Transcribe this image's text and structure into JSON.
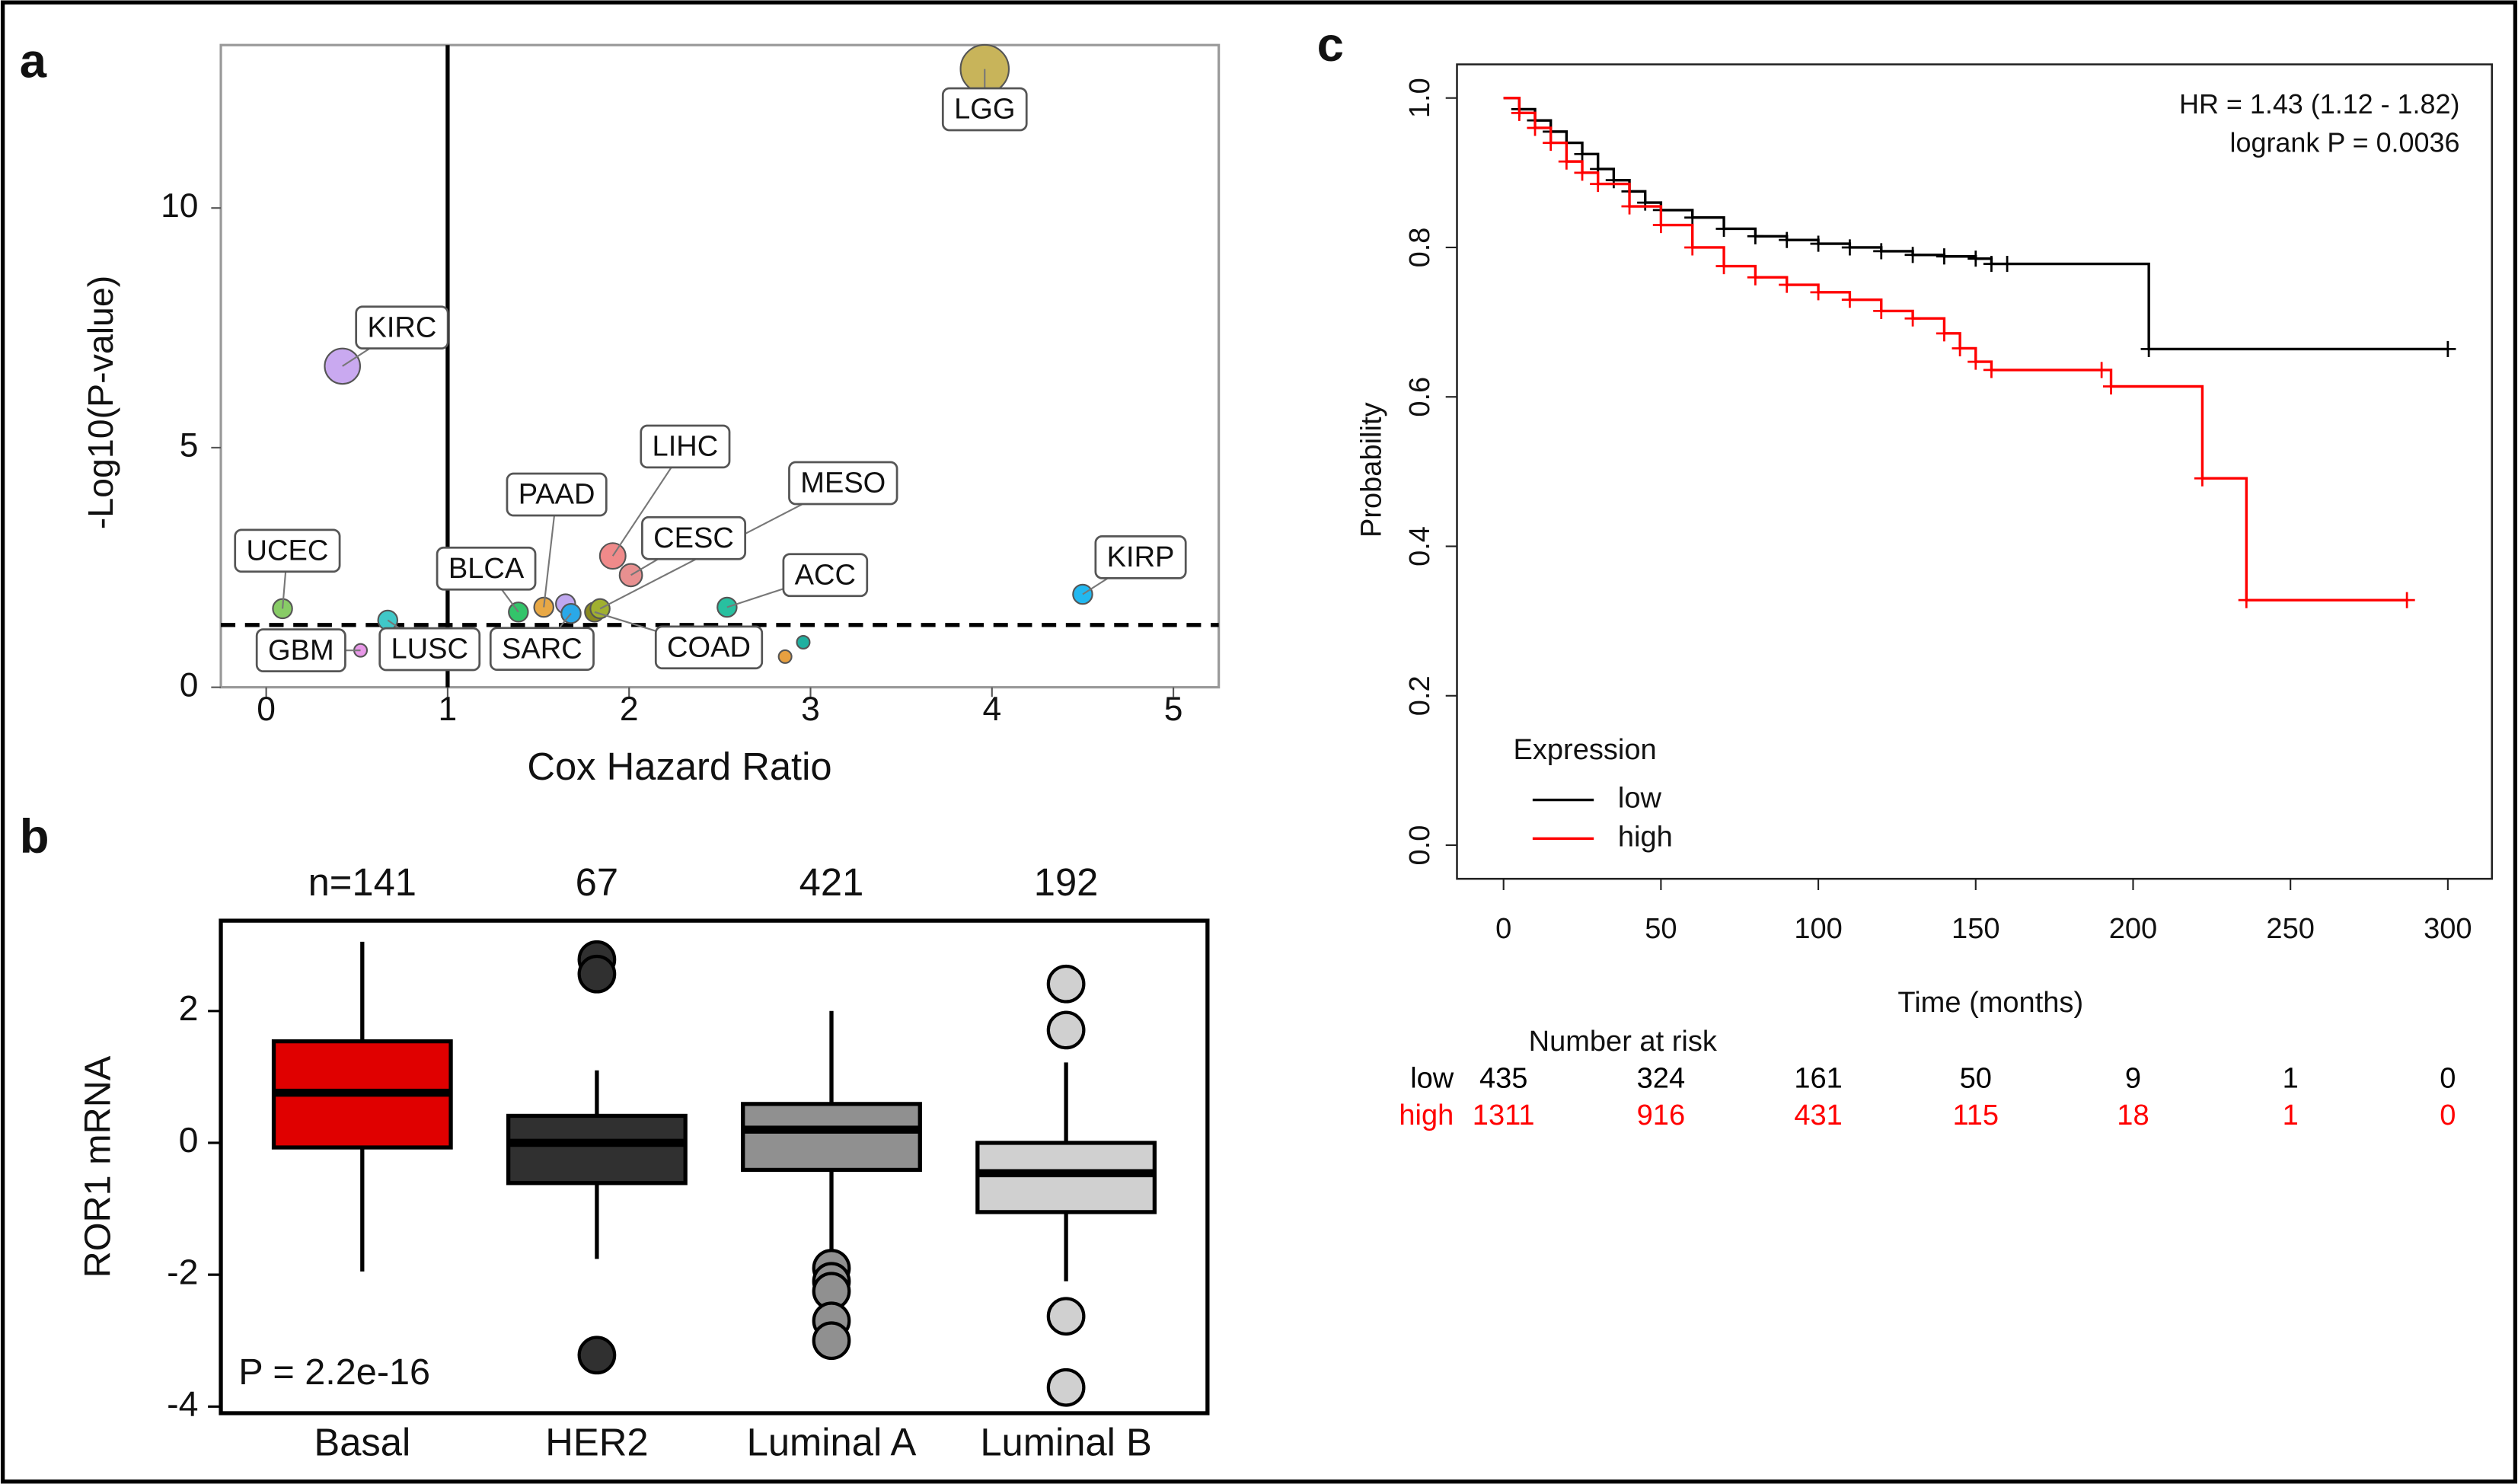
{
  "chart_data": [
    {
      "type": "scatter",
      "panel_label": "a",
      "xlabel": "Cox Hazard Ratio",
      "ylabel": "-Log10(P-value)",
      "xlim": [
        -0.25,
        5.25
      ],
      "ylim": [
        0,
        13.4
      ],
      "xticks": [
        0,
        1,
        2,
        3,
        4,
        5
      ],
      "yticks": [
        0,
        5,
        10
      ],
      "vline": 1,
      "hline": 1.3,
      "labels": [
        "LGG",
        "KIRC",
        "UCEC",
        "GBM",
        "LUSC",
        "BLCA",
        "PAAD",
        null,
        "SARC",
        "COAD",
        "MESO",
        "CESC",
        "LIHC",
        "ACC",
        "KIRP",
        null,
        null
      ],
      "x": [
        3.96,
        0.42,
        0.09,
        0.52,
        0.67,
        1.39,
        1.53,
        1.65,
        1.68,
        1.81,
        1.84,
        2.01,
        1.91,
        2.54,
        4.5,
        2.86,
        2.96
      ],
      "values": [
        12.9,
        6.7,
        1.64,
        0.77,
        1.4,
        1.57,
        1.67,
        1.74,
        1.54,
        1.57,
        1.64,
        2.34,
        2.74,
        1.67,
        1.94,
        0.64,
        0.94
      ],
      "sizes": [
        15,
        11,
        6,
        4,
        6,
        6,
        6,
        6,
        6,
        6,
        6,
        7,
        8,
        6,
        6,
        4,
        4
      ],
      "colors": [
        "#c8b45a",
        "#c9a9f0",
        "#88cc66",
        "#e898e8",
        "#40c8c8",
        "#33c46a",
        "#e8a845",
        "#c0a8f0",
        "#2aa8e8",
        "#8a8a20",
        "#a0b030",
        "#e89090",
        "#f08a8a",
        "#28c0a0",
        "#22b8f0",
        "#e8a040",
        "#20b0a0"
      ]
    },
    {
      "type": "box",
      "panel_label": "b",
      "ylabel": "ROR1 mRNA",
      "categories": [
        "Basal",
        "HER2",
        "Luminal A",
        "Luminal B"
      ],
      "counts": [
        "n=141",
        "67",
        "421",
        "192"
      ],
      "annotation": "P = 2.2e-16",
      "ylim": [
        -4.1,
        3.37
      ],
      "yticks": [
        -4,
        -2,
        0,
        2
      ],
      "whisker_low": [
        -1.95,
        -1.76,
        -1.7,
        -2.1
      ],
      "q1": [
        -0.07,
        -0.61,
        -0.41,
        -1.05
      ],
      "median": [
        0.76,
        0.0,
        0.2,
        -0.46
      ],
      "q3": [
        1.54,
        0.41,
        0.59,
        0.0
      ],
      "whisker_high": [
        3.05,
        1.1,
        2.0,
        1.22
      ],
      "outliers": [
        [],
        [
          2.78,
          2.56,
          -3.22
        ],
        [
          -1.9,
          -2.1,
          -2.25,
          -2.7,
          -3.0
        ],
        [
          2.41,
          1.71,
          -2.63,
          -3.71
        ]
      ],
      "colors": [
        "#e00000",
        "#303030",
        "#909090",
        "#d0d0d0"
      ]
    },
    {
      "type": "line",
      "panel_label": "c",
      "step": true,
      "xlabel": "Time (months)",
      "ylabel": "Probability",
      "xlim": [
        -14.8,
        314
      ],
      "ylim": [
        -0.045,
        1.045
      ],
      "xticks": [
        0,
        50,
        100,
        150,
        200,
        250,
        300
      ],
      "yticks": [
        {
          "value": 0,
          "label": "0.0"
        },
        0.2,
        0.4,
        0.6,
        0.8,
        {
          "value": 1,
          "label": "1.0"
        }
      ],
      "annotations": [
        "HR = 1.43 (1.12 - 1.82)",
        "logrank P = 0.0036"
      ],
      "legend_title": "Expression",
      "legend_position": "bottom left",
      "series": [
        {
          "name": "low",
          "color": "#000000",
          "x": [
            0,
            5,
            10,
            15,
            20,
            25,
            30,
            35,
            40,
            45,
            50,
            60,
            70,
            80,
            90,
            100,
            110,
            120,
            130,
            140,
            150,
            155,
            160,
            205,
            300
          ],
          "values": [
            1.0,
            0.985,
            0.97,
            0.955,
            0.94,
            0.925,
            0.905,
            0.89,
            0.875,
            0.86,
            0.85,
            0.84,
            0.825,
            0.815,
            0.81,
            0.805,
            0.8,
            0.795,
            0.79,
            0.788,
            0.785,
            0.778,
            0.778,
            0.664,
            0.664
          ]
        },
        {
          "name": "high",
          "color": "#ff0000",
          "x": [
            0,
            5,
            10,
            15,
            20,
            25,
            30,
            40,
            50,
            60,
            70,
            80,
            90,
            100,
            110,
            120,
            130,
            140,
            145,
            150,
            155,
            190,
            193,
            222,
            236,
            287
          ],
          "values": [
            1.0,
            0.98,
            0.96,
            0.94,
            0.915,
            0.9,
            0.885,
            0.855,
            0.83,
            0.8,
            0.775,
            0.76,
            0.75,
            0.74,
            0.73,
            0.715,
            0.705,
            0.685,
            0.665,
            0.647,
            0.636,
            0.636,
            0.614,
            0.491,
            0.328,
            0.328
          ]
        }
      ],
      "risk_table": {
        "title": "Number at risk",
        "counts": [
          [
            435,
            324,
            161,
            50,
            9,
            1,
            0
          ],
          [
            1311,
            916,
            431,
            115,
            18,
            1,
            0
          ]
        ]
      }
    }
  ]
}
